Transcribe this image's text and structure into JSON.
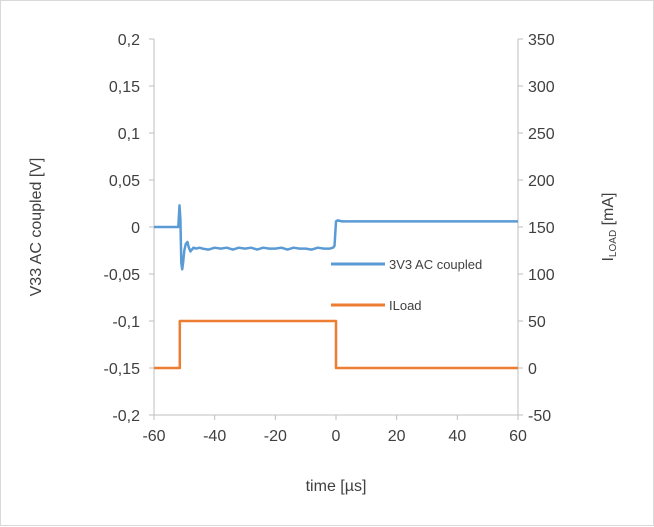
{
  "chart_data": {
    "type": "line",
    "title": "",
    "xlabel": "time [µs]",
    "ylabel_left": "V33 AC coupled [V]",
    "ylabel_right_main": "I",
    "ylabel_right_sub": "LOAD",
    "ylabel_right_unit": " [mA]",
    "xlim": [
      -60,
      60
    ],
    "ylim_left": [
      -0.2,
      0.2
    ],
    "ylim_right": [
      -50,
      350
    ],
    "x_ticks": [
      "-60",
      "-40",
      "-20",
      "0",
      "20",
      "40",
      "60"
    ],
    "y_left_ticks": [
      "0,2",
      "0,15",
      "0,1",
      "0,05",
      "0",
      "-0,05",
      "-0,1",
      "-0,15",
      "-0,2"
    ],
    "y_right_ticks": [
      "350",
      "300",
      "250",
      "200",
      "150",
      "100",
      "50",
      "0",
      "-50"
    ],
    "grid": false,
    "legend_position": "inside-right",
    "series": [
      {
        "name": "3V3 AC coupled",
        "axis": "left",
        "color": "#5b9bd5",
        "x": [
          -60,
          -52,
          -51.6,
          -51.3,
          -51,
          -50.7,
          -50.4,
          -50,
          -49.5,
          -49,
          -48.5,
          -48,
          -47.5,
          -47,
          -46,
          -45,
          -44,
          -42,
          -40,
          -38,
          -36,
          -34,
          -32,
          -30,
          -28,
          -26,
          -24,
          -22,
          -20,
          -18,
          -16,
          -14,
          -12,
          -10,
          -8,
          -6,
          -4,
          -2,
          -1,
          -0.5,
          -0.3,
          0,
          0.5,
          2,
          10,
          20,
          30,
          40,
          50,
          60
        ],
        "y": [
          0.0,
          0.0,
          0.023,
          0.008,
          -0.038,
          -0.045,
          -0.038,
          -0.025,
          -0.018,
          -0.016,
          -0.022,
          -0.026,
          -0.024,
          -0.022,
          -0.023,
          -0.022,
          -0.023,
          -0.024,
          -0.022,
          -0.023,
          -0.022,
          -0.024,
          -0.022,
          -0.023,
          -0.022,
          -0.024,
          -0.022,
          -0.023,
          -0.023,
          -0.022,
          -0.024,
          -0.022,
          -0.023,
          -0.023,
          -0.024,
          -0.022,
          -0.023,
          -0.023,
          -0.022,
          -0.02,
          -0.01,
          0.006,
          0.007,
          0.006,
          0.006,
          0.006,
          0.006,
          0.006,
          0.006,
          0.006
        ]
      },
      {
        "name": "ILoad",
        "axis": "right",
        "color": "#ed7d31",
        "x": [
          -60,
          -51.5,
          -51.5,
          0,
          0,
          60
        ],
        "y": [
          0,
          0,
          50,
          50,
          0,
          0
        ]
      }
    ]
  }
}
